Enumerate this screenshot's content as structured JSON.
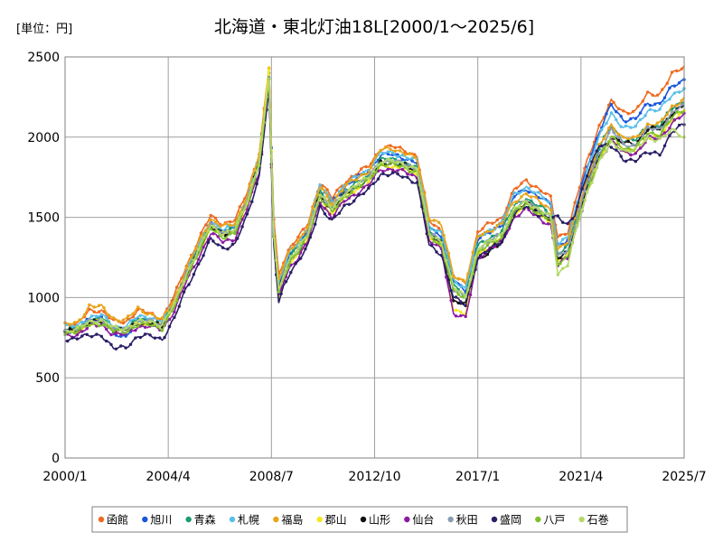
{
  "chart_data": {
    "type": "line",
    "title": "北海道・東北灯油18L[2000/1～2025/6]",
    "unit_label": "[単位：円]",
    "xlabel": "",
    "ylabel": "",
    "xlim": [
      2000.0,
      2025.5
    ],
    "ylim": [
      0,
      2500
    ],
    "y_ticks": [
      0,
      500,
      1000,
      1500,
      2000,
      2500
    ],
    "x_ticks": [
      {
        "label": "2000/1",
        "x": 2000.0
      },
      {
        "label": "2004/4",
        "x": 2004.25
      },
      {
        "label": "2008/7",
        "x": 2008.5
      },
      {
        "label": "2012/10",
        "x": 2012.75
      },
      {
        "label": "2017/1",
        "x": 2017.0
      },
      {
        "label": "2021/4",
        "x": 2021.25
      },
      {
        "label": "2025/7",
        "x": 2025.5
      }
    ],
    "grid": true,
    "legend_position": "bottom",
    "baseline": {
      "x": [
        2000.0,
        2000.5,
        2001.0,
        2001.5,
        2002.0,
        2002.5,
        2003.0,
        2003.5,
        2004.0,
        2004.5,
        2005.0,
        2005.5,
        2006.0,
        2006.5,
        2007.0,
        2007.5,
        2008.0,
        2008.4,
        2008.6,
        2008.8,
        2009.0,
        2009.3,
        2009.6,
        2010.0,
        2010.5,
        2011.0,
        2011.5,
        2012.0,
        2012.5,
        2013.0,
        2013.5,
        2014.0,
        2014.5,
        2015.0,
        2015.5,
        2016.0,
        2016.5,
        2017.0,
        2017.5,
        2018.0,
        2018.5,
        2019.0,
        2019.5,
        2020.0,
        2020.3,
        2020.7,
        2021.0,
        2021.5,
        2022.0,
        2022.5,
        2023.0,
        2023.5,
        2024.0,
        2024.5,
        2025.0,
        2025.5
      ],
      "y": [
        790,
        800,
        850,
        860,
        800,
        800,
        850,
        850,
        830,
        960,
        1150,
        1300,
        1450,
        1400,
        1420,
        1600,
        1850,
        2380,
        1400,
        1050,
        1150,
        1250,
        1300,
        1400,
        1650,
        1550,
        1650,
        1700,
        1750,
        1850,
        1850,
        1830,
        1800,
        1400,
        1350,
        1050,
        1000,
        1300,
        1350,
        1400,
        1550,
        1600,
        1550,
        1500,
        1250,
        1300,
        1450,
        1700,
        1900,
        2050,
        1950,
        1950,
        2050,
        2050,
        2150,
        2200
      ]
    },
    "series": [
      {
        "name": "函館",
        "color": "#f06a20",
        "values": [
          840,
          830,
          920,
          920,
          850,
          850,
          920,
          900,
          870,
          1010,
          1200,
          1360,
          1510,
          1460,
          1480,
          1660,
          1900,
          2430,
          1480,
          1150,
          1230,
          1320,
          1370,
          1460,
          1720,
          1620,
          1720,
          1770,
          1820,
          1930,
          1940,
          1920,
          1880,
          1480,
          1420,
          1130,
          1090,
          1410,
          1460,
          1500,
          1670,
          1730,
          1680,
          1620,
          1380,
          1410,
          1580,
          1850,
          2070,
          2220,
          2160,
          2160,
          2270,
          2270,
          2390,
          2440
        ]
      },
      {
        "name": "旭川",
        "color": "#1a56db",
        "values": [
          810,
          800,
          870,
          880,
          770,
          760,
          860,
          860,
          840,
          970,
          1160,
          1320,
          1470,
          1410,
          1440,
          1620,
          1870,
          2420,
          1430,
          1080,
          1180,
          1280,
          1330,
          1430,
          1690,
          1590,
          1690,
          1740,
          1790,
          1890,
          1890,
          1870,
          1840,
          1440,
          1390,
          1100,
          1050,
          1360,
          1410,
          1460,
          1630,
          1680,
          1630,
          1580,
          1330,
          1360,
          1520,
          1820,
          2030,
          2200,
          2110,
          2110,
          2210,
          2210,
          2310,
          2360
        ]
      },
      {
        "name": "青森",
        "color": "#1c9a73",
        "values": [
          800,
          800,
          860,
          870,
          810,
          810,
          860,
          860,
          840,
          970,
          1160,
          1310,
          1460,
          1410,
          1430,
          1610,
          1860,
          2390,
          1410,
          1060,
          1160,
          1260,
          1310,
          1410,
          1660,
          1560,
          1660,
          1710,
          1760,
          1860,
          1860,
          1840,
          1810,
          1410,
          1360,
          1070,
          1020,
          1320,
          1370,
          1420,
          1570,
          1620,
          1570,
          1520,
          1280,
          1320,
          1470,
          1730,
          1930,
          2070,
          1980,
          1980,
          2070,
          2070,
          2180,
          2230
        ]
      },
      {
        "name": "札幌",
        "color": "#58bfe8",
        "values": [
          820,
          820,
          880,
          890,
          820,
          820,
          880,
          880,
          850,
          980,
          1170,
          1330,
          1480,
          1420,
          1450,
          1630,
          1880,
          2400,
          1440,
          1090,
          1190,
          1290,
          1340,
          1440,
          1700,
          1600,
          1700,
          1750,
          1800,
          1900,
          1900,
          1880,
          1850,
          1450,
          1400,
          1110,
          1060,
          1370,
          1420,
          1470,
          1640,
          1690,
          1640,
          1590,
          1340,
          1370,
          1530,
          1800,
          2000,
          2150,
          2060,
          2060,
          2170,
          2170,
          2260,
          2310
        ]
      },
      {
        "name": "福島",
        "color": "#e8a418",
        "values": [
          830,
          840,
          950,
          940,
          870,
          860,
          930,
          900,
          860,
          990,
          1180,
          1340,
          1490,
          1440,
          1460,
          1640,
          1890,
          2440,
          1460,
          1120,
          1200,
          1300,
          1350,
          1450,
          1690,
          1590,
          1690,
          1740,
          1790,
          1920,
          1930,
          1900,
          1860,
          1500,
          1450,
          1140,
          1100,
          1380,
          1420,
          1460,
          1600,
          1650,
          1600,
          1550,
          1300,
          1340,
          1490,
          1740,
          1940,
          2080,
          1990,
          1990,
          2080,
          2080,
          2190,
          2240
        ]
      },
      {
        "name": "郡山",
        "color": "#f7e61e",
        "values": [
          780,
          790,
          840,
          850,
          800,
          800,
          840,
          840,
          820,
          950,
          1140,
          1290,
          1440,
          1390,
          1410,
          1590,
          1840,
          2450,
          1370,
          980,
          1110,
          1220,
          1270,
          1370,
          1620,
          1520,
          1620,
          1670,
          1720,
          1820,
          1820,
          1800,
          1770,
          1370,
          1320,
          930,
          900,
          1270,
          1320,
          1370,
          1520,
          1570,
          1520,
          1470,
          1220,
          1270,
          1420,
          1670,
          1860,
          2000,
          1910,
          1910,
          2000,
          2000,
          2110,
          2160
        ]
      },
      {
        "name": "山形",
        "color": "#111111",
        "values": [
          790,
          800,
          840,
          850,
          800,
          800,
          840,
          840,
          820,
          950,
          1140,
          1290,
          1440,
          1390,
          1410,
          1590,
          1840,
          2360,
          1390,
          1040,
          1140,
          1240,
          1290,
          1390,
          1640,
          1540,
          1640,
          1690,
          1740,
          1840,
          1840,
          1820,
          1790,
          1390,
          1340,
          980,
          960,
          1240,
          1290,
          1340,
          1540,
          1590,
          1540,
          1490,
          1240,
          1280,
          1430,
          1690,
          1890,
          2000,
          1960,
          1960,
          2050,
          2050,
          2150,
          2200
        ]
      },
      {
        "name": "仙台",
        "color": "#8c1aa3",
        "values": [
          760,
          770,
          820,
          830,
          770,
          770,
          820,
          820,
          800,
          920,
          1100,
          1250,
          1400,
          1350,
          1370,
          1550,
          1790,
          2300,
          1340,
          1000,
          1100,
          1200,
          1250,
          1350,
          1600,
          1500,
          1600,
          1650,
          1700,
          1800,
          1800,
          1780,
          1750,
          1350,
          1300,
          900,
          870,
          1250,
          1300,
          1350,
          1500,
          1550,
          1500,
          1450,
          1200,
          1250,
          1400,
          1650,
          1850,
          1980,
          1900,
          1900,
          1990,
          1990,
          2090,
          2140
        ]
      },
      {
        "name": "秋田",
        "color": "#8a9bb4",
        "values": [
          790,
          800,
          850,
          860,
          800,
          800,
          850,
          850,
          830,
          960,
          1150,
          1300,
          1450,
          1400,
          1420,
          1600,
          1850,
          2380,
          1400,
          1050,
          1150,
          1250,
          1300,
          1400,
          1650,
          1550,
          1650,
          1700,
          1750,
          1850,
          1850,
          1830,
          1800,
          1400,
          1350,
          1050,
          1000,
          1300,
          1350,
          1400,
          1550,
          1600,
          1550,
          1500,
          1250,
          1300,
          1450,
          1700,
          1900,
          2050,
          1950,
          1950,
          2050,
          2050,
          2150,
          2200
        ]
      },
      {
        "name": "盛岡",
        "color": "#2a1e66",
        "values": [
          740,
          750,
          760,
          770,
          680,
          690,
          760,
          760,
          740,
          870,
          1060,
          1210,
          1360,
          1310,
          1330,
          1510,
          1760,
          2310,
          1320,
          970,
          1070,
          1170,
          1220,
          1320,
          1570,
          1470,
          1570,
          1620,
          1670,
          1770,
          1770,
          1750,
          1720,
          1320,
          1270,
          1000,
          950,
          1250,
          1300,
          1350,
          1520,
          1570,
          1520,
          1490,
          1500,
          1460,
          1520,
          1760,
          1960,
          1940,
          1860,
          1860,
          1900,
          1900,
          2030,
          2080
        ]
      },
      {
        "name": "八戸",
        "color": "#7fbf2a",
        "values": [
          780,
          790,
          830,
          840,
          790,
          790,
          830,
          830,
          810,
          940,
          1130,
          1280,
          1430,
          1380,
          1400,
          1580,
          1830,
          2350,
          1380,
          1030,
          1130,
          1230,
          1280,
          1380,
          1630,
          1530,
          1630,
          1680,
          1730,
          1830,
          1830,
          1810,
          1780,
          1380,
          1330,
          1040,
          990,
          1280,
          1330,
          1380,
          1530,
          1580,
          1530,
          1480,
          1210,
          1260,
          1410,
          1660,
          1870,
          2000,
          1930,
          1930,
          2020,
          2020,
          2120,
          2170
        ]
      },
      {
        "name": "石巻",
        "color": "#b5d96a",
        "values": [
          790,
          800,
          850,
          860,
          810,
          810,
          850,
          850,
          830,
          960,
          1150,
          1300,
          1450,
          1400,
          1420,
          1600,
          1850,
          2370,
          1400,
          1050,
          1150,
          1250,
          1300,
          1400,
          1650,
          1550,
          1650,
          1700,
          1750,
          1850,
          1850,
          1830,
          1800,
          1400,
          1350,
          1060,
          1010,
          1300,
          1350,
          1400,
          1550,
          1600,
          1550,
          1500,
          1150,
          1210,
          1390,
          1650,
          1850,
          1960,
          1920,
          1920,
          1990,
          1990,
          2040,
          2000
        ]
      }
    ]
  }
}
